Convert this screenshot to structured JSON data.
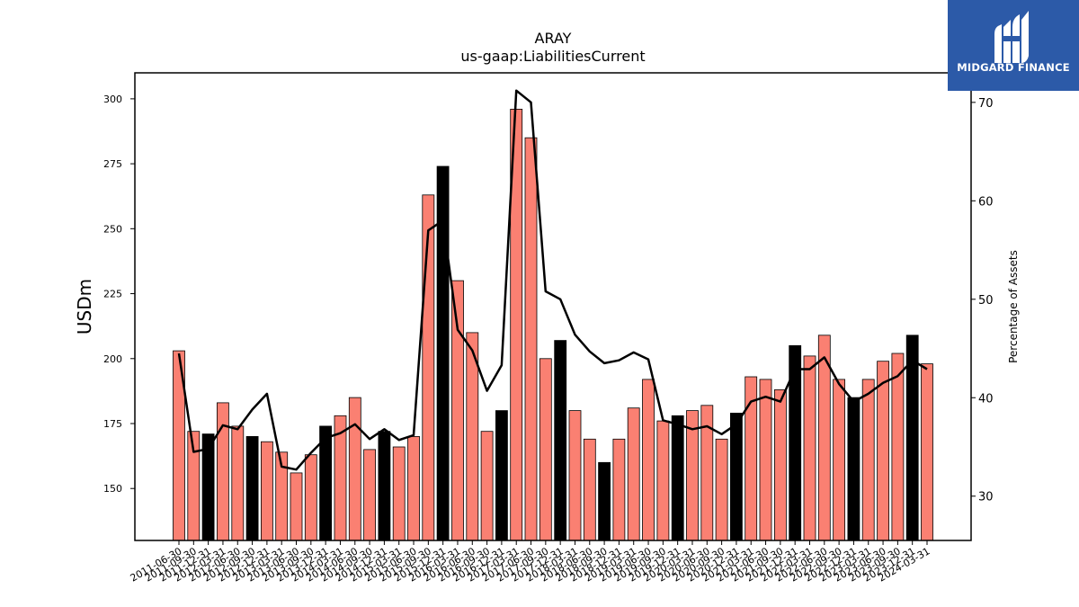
{
  "chart_data": {
    "type": "bar",
    "title": "ARAY",
    "subtitle": "us-gaap:LiabilitiesCurrent",
    "ylabel": "USDm",
    "y2label": "Percentage of Assets",
    "ylim": [
      130,
      310
    ],
    "y2lim": [
      25.5,
      73
    ],
    "yticks": [
      150,
      175,
      200,
      225,
      250,
      275,
      300
    ],
    "y2ticks": [
      30,
      40,
      50,
      60,
      70
    ],
    "colors": {
      "bar": "#fa8072",
      "highlight_bar": "#000000",
      "line": "#000000"
    },
    "categories": [
      "2011-06-30",
      "2011-09-30",
      "2011-12-31",
      "2012-03-31",
      "2012-06-30",
      "2012-09-30",
      "2012-12-31",
      "2013-03-31",
      "2013-06-30",
      "2013-09-30",
      "2013-12-31",
      "2014-03-31",
      "2014-06-30",
      "2014-09-30",
      "2014-12-31",
      "2015-03-31",
      "2015-06-30",
      "2015-09-30",
      "2015-12-31",
      "2016-03-31",
      "2016-06-30",
      "2016-09-30",
      "2016-12-31",
      "2017-03-31",
      "2017-06-30",
      "2017-09-30",
      "2017-12-31",
      "2018-03-31",
      "2018-06-30",
      "2018-09-30",
      "2018-12-31",
      "2019-03-31",
      "2019-06-30",
      "2019-09-30",
      "2019-12-31",
      "2020-03-31",
      "2020-06-30",
      "2020-09-30",
      "2020-12-31",
      "2021-03-31",
      "2021-06-30",
      "2021-09-30",
      "2021-12-31",
      "2022-03-31",
      "2022-06-30",
      "2022-09-30",
      "2022-12-31",
      "2023-03-31",
      "2023-06-30",
      "2023-09-30",
      "2023-12-31",
      "2024-03-31"
    ],
    "values": [
      203,
      172,
      171,
      183,
      174,
      170,
      168,
      164,
      156,
      163,
      174,
      178,
      185,
      165,
      172,
      166,
      170,
      263,
      274,
      230,
      210,
      172,
      180,
      296,
      285,
      200,
      207,
      180,
      169,
      160,
      169,
      181,
      192,
      176,
      178,
      180,
      182,
      169,
      179,
      193,
      192,
      188,
      205,
      201,
      209,
      192,
      185,
      192,
      199,
      202,
      209,
      198
    ],
    "highlight": [
      false,
      false,
      true,
      false,
      false,
      true,
      false,
      false,
      false,
      false,
      true,
      false,
      false,
      false,
      true,
      false,
      false,
      false,
      true,
      false,
      false,
      false,
      true,
      false,
      false,
      false,
      true,
      false,
      false,
      true,
      false,
      false,
      false,
      false,
      true,
      false,
      false,
      false,
      true,
      false,
      false,
      false,
      true,
      false,
      false,
      false,
      true,
      false,
      false,
      false,
      true,
      false
    ],
    "series": [
      {
        "name": "Percentage of Assets",
        "values": [
          44.5,
          34.5,
          34.8,
          37.2,
          36.8,
          38.8,
          40.4,
          33.0,
          32.7,
          34.4,
          35.9,
          36.4,
          37.3,
          35.8,
          36.8,
          35.7,
          36.2,
          57.0,
          58.0,
          46.9,
          44.8,
          40.7,
          43.3,
          71.2,
          70.0,
          50.8,
          50.0,
          46.4,
          44.7,
          43.5,
          43.8,
          44.6,
          43.9,
          37.7,
          37.3,
          36.8,
          37.1,
          36.3,
          37.3,
          39.6,
          40.1,
          39.6,
          42.9,
          42.9,
          44.1,
          41.4,
          39.6,
          40.4,
          41.5,
          42.2,
          43.8,
          42.9
        ]
      }
    ]
  },
  "logo": {
    "text": "MIDGARD FINANCE"
  }
}
